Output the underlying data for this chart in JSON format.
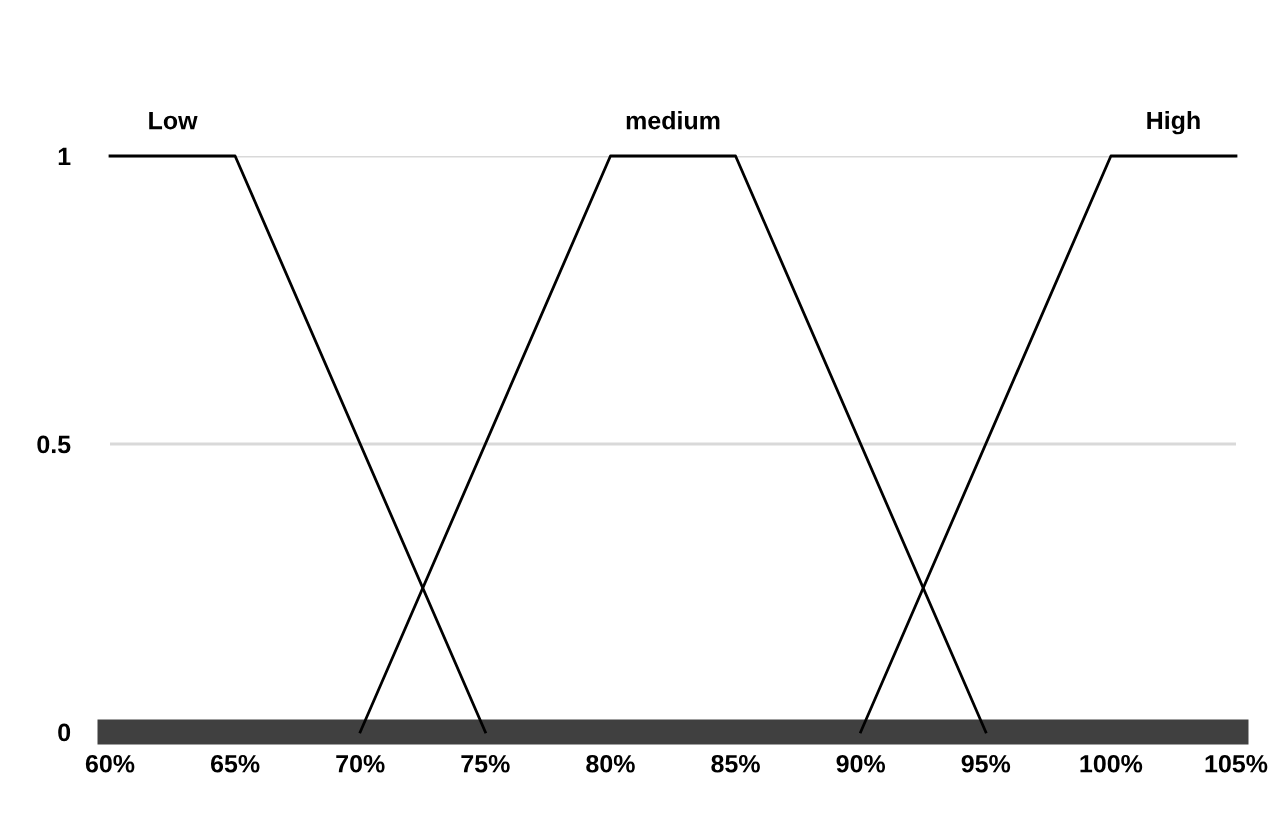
{
  "chart_data": {
    "type": "line",
    "series": [
      {
        "name": "Low",
        "color": "#000000",
        "x": [
          60,
          65,
          75
        ],
        "values": [
          1,
          1,
          0
        ]
      },
      {
        "name": "medium",
        "color": "#000000",
        "x": [
          70,
          80,
          85,
          95
        ],
        "values": [
          0,
          1,
          1,
          0
        ]
      },
      {
        "name": "High",
        "color": "#000000",
        "x": [
          90,
          100,
          105
        ],
        "values": [
          0,
          1,
          1
        ]
      }
    ],
    "xlim": [
      60,
      105
    ],
    "ylim": [
      0,
      1
    ],
    "xticks": [
      {
        "value": 60,
        "label": "60%"
      },
      {
        "value": 65,
        "label": "65%"
      },
      {
        "value": 70,
        "label": "70%"
      },
      {
        "value": 75,
        "label": "75%"
      },
      {
        "value": 80,
        "label": "80%"
      },
      {
        "value": 85,
        "label": "85%"
      },
      {
        "value": 90,
        "label": "90%"
      },
      {
        "value": 95,
        "label": "95%"
      },
      {
        "value": 100,
        "label": "100%"
      },
      {
        "value": 105,
        "label": "105%"
      }
    ],
    "yticks": [
      0,
      0.5,
      1
    ],
    "grid": "y"
  }
}
